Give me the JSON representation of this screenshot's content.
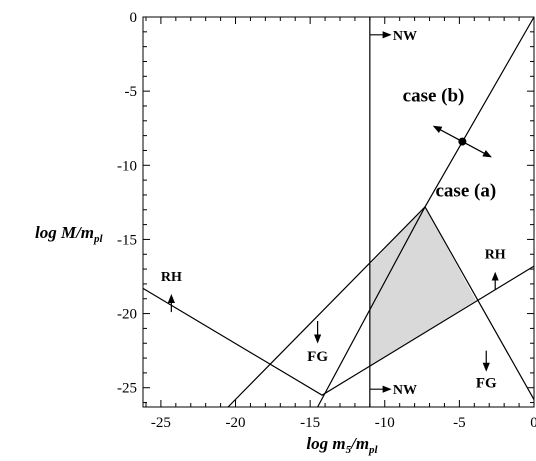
{
  "chart_data": {
    "type": "line",
    "xlabel": "log m5/mpl",
    "ylabel": "log M/mpl",
    "xlim": [
      -26.2,
      0
    ],
    "ylim": [
      -26.3,
      0
    ],
    "x_ticks": [
      -25,
      -20,
      -15,
      -10,
      -5,
      0
    ],
    "y_ticks": [
      0,
      -5,
      -10,
      -15,
      -20,
      -25
    ],
    "grid": false,
    "legend": "none",
    "series": [
      {
        "points": [
          [
            -11,
            0
          ],
          [
            -11,
            -26.3
          ]
        ]
      },
      {
        "points": [
          [
            -14.5,
            -26.3
          ],
          [
            -7.3,
            -12.8
          ],
          [
            0,
            0
          ]
        ]
      },
      {
        "points": [
          [
            -20.5,
            -26.3
          ],
          [
            -7.3,
            -12.8
          ],
          [
            0,
            -25.8
          ]
        ]
      },
      {
        "points": [
          [
            -26.2,
            -18.3
          ],
          [
            -14.2,
            -25.5
          ],
          [
            0,
            -16.8
          ]
        ]
      }
    ],
    "shaded_region": {
      "color": "#d9d9d9",
      "vertices": [
        [
          -11,
          -16.7
        ],
        [
          -7.3,
          -12.8
        ],
        [
          -3.9,
          -19.1
        ],
        [
          -11,
          -23.6
        ]
      ]
    },
    "point": {
      "x": -4.8,
      "y": -8.4
    },
    "annotations": [
      {
        "text": "NW",
        "x": -11,
        "y": -1.2,
        "size": 14
      },
      {
        "text": "NW",
        "x": -11,
        "y": -25.1,
        "size": 14
      },
      {
        "text": "case (b)",
        "x": -8.8,
        "y": -5.7,
        "size": 19
      },
      {
        "text": "case (a)",
        "x": -6.6,
        "y": -12.1,
        "size": 19
      },
      {
        "text": "RH",
        "x": -24.3,
        "y": -17.8,
        "size": 14
      },
      {
        "text": "RH",
        "x": -2.6,
        "y": -16.3,
        "size": 14
      },
      {
        "text": "FG",
        "x": -14.5,
        "y": -23.2,
        "size": 15
      },
      {
        "text": "FG",
        "x": -3.2,
        "y": -25.0,
        "size": 15
      }
    ]
  }
}
